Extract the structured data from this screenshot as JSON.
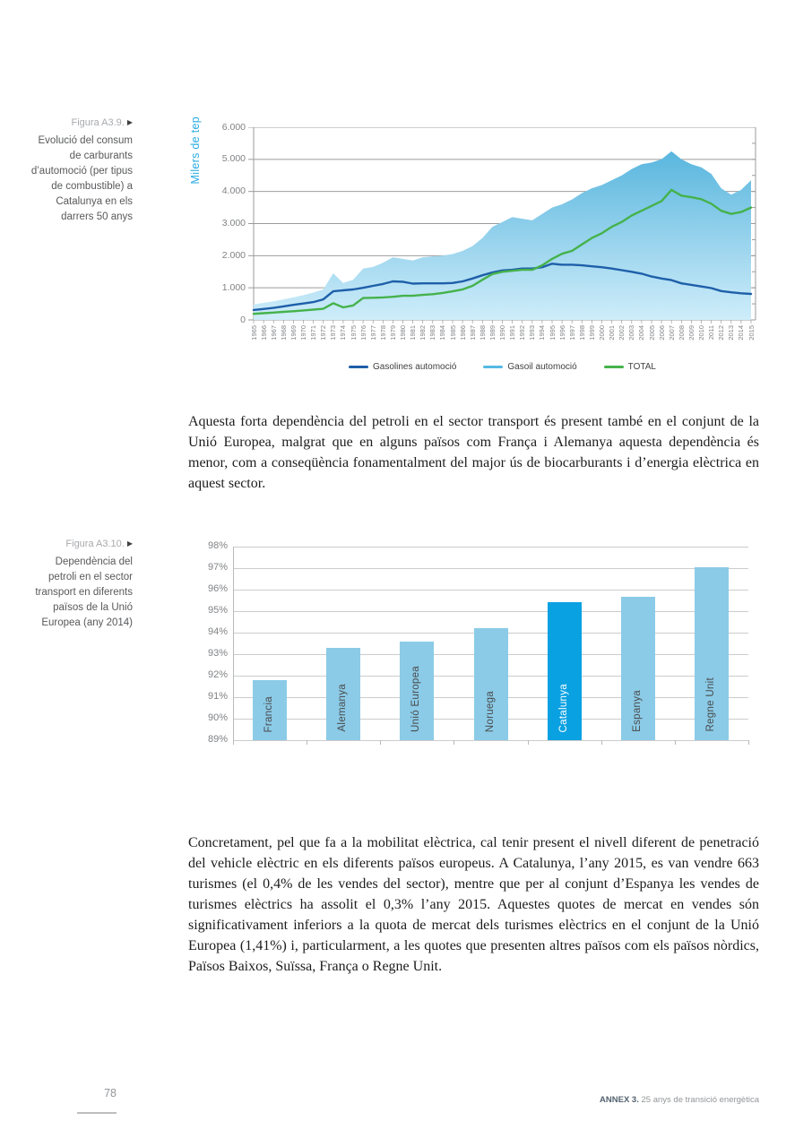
{
  "figure1": {
    "label": "Figura A3.9.",
    "arrow": "▶",
    "caption": "Evolució del consum de carburants d’automoció (per tipus de combustible) a Catalunya en els darrers 50 anys"
  },
  "figure2": {
    "label": "Figura A3.10.",
    "arrow": "▶",
    "caption": "Dependència del petroli en el sector transport en diferents països de la Unió Europea (any 2014)"
  },
  "paragraph1": "Aquesta forta dependència del petroli en el sector transport és present també en el conjunt de la Unió Europea, malgrat que en alguns països com França i Alemanya aquesta dependència és menor, com a conseqüència fonamentalment del major ús de biocarburants i d’energia elèctrica en aquest sector.",
  "paragraph2": "Concretament, pel que fa a la mobilitat elèctrica, cal tenir present el nivell diferent de penetració del vehicle elèctric en els diferents països europeus. A Catalunya, l’any 2015, es van vendre 663 turismes (el 0,4% de les vendes del sector), mentre que per al conjunt d’Espanya les vendes de turismes elèctrics ha assolit el 0,3% l’any 2015. Aquestes quotes de mercat en vendes són significativament inferiors a la quota de mercat dels turismes elèctrics en el conjunt de la Unió Europea (1,41%) i, particularment, a les quotes que presenten altres països com els països nòrdics, Països Baixos, Suïssa, França o Regne Unit.",
  "footer": {
    "page_number": "78",
    "annex_label": "ANNEX 3.",
    "annex_title": " 25 anys de transició energètica"
  },
  "chart_data": [
    {
      "type": "area",
      "title": "",
      "xlabel": "",
      "ylabel": "Milers de tep",
      "ylim": [
        0,
        6000
      ],
      "ytick_labels": [
        "0",
        "1.000",
        "2.000",
        "3.000",
        "4.000",
        "5.000",
        "6.000"
      ],
      "grid": true,
      "legend_position": "bottom",
      "area_gradient": [
        "#59b6de",
        "#cfedfa"
      ],
      "axis_color": "#9b9b9b",
      "x": [
        1965,
        1966,
        1967,
        1968,
        1969,
        1970,
        1971,
        1972,
        1973,
        1974,
        1975,
        1976,
        1977,
        1978,
        1979,
        1980,
        1981,
        1982,
        1983,
        1984,
        1985,
        1986,
        1987,
        1988,
        1989,
        1990,
        1991,
        1992,
        1993,
        1994,
        1995,
        1996,
        1997,
        1998,
        1999,
        2000,
        2001,
        2002,
        2003,
        2004,
        2005,
        2006,
        2007,
        2008,
        2009,
        2010,
        2011,
        2012,
        2013,
        2014,
        2015
      ],
      "series": [
        {
          "name": "Gasolines automoció",
          "style": "line",
          "color": "#1e5fa9",
          "values": [
            310,
            340,
            375,
            420,
            470,
            510,
            555,
            640,
            890,
            920,
            950,
            1000,
            1060,
            1120,
            1200,
            1190,
            1130,
            1140,
            1140,
            1140,
            1150,
            1200,
            1290,
            1390,
            1480,
            1540,
            1560,
            1600,
            1600,
            1640,
            1750,
            1720,
            1720,
            1700,
            1670,
            1640,
            1600,
            1550,
            1500,
            1440,
            1350,
            1290,
            1240,
            1140,
            1090,
            1040,
            990,
            900,
            860,
            830,
            810
          ]
        },
        {
          "name": "Gasoil automoció",
          "style": "area",
          "color": "#56b9e4",
          "values": [
            480,
            530,
            580,
            640,
            700,
            770,
            850,
            950,
            1450,
            1150,
            1250,
            1600,
            1650,
            1780,
            1950,
            1900,
            1850,
            1950,
            1980,
            2000,
            2050,
            2150,
            2300,
            2550,
            2900,
            3050,
            3200,
            3150,
            3100,
            3300,
            3500,
            3600,
            3750,
            3950,
            4100,
            4200,
            4350,
            4500,
            4700,
            4850,
            4900,
            5000,
            5250,
            5000,
            4850,
            4750,
            4550,
            4100,
            3900,
            4050,
            4350
          ]
        },
        {
          "name": "TOTAL",
          "style": "line",
          "color": "#45b24b",
          "values": [
            190,
            210,
            230,
            250,
            270,
            295,
            320,
            345,
            520,
            390,
            450,
            680,
            690,
            700,
            720,
            750,
            750,
            780,
            800,
            840,
            890,
            950,
            1060,
            1250,
            1430,
            1500,
            1530,
            1560,
            1560,
            1700,
            1900,
            2060,
            2150,
            2350,
            2550,
            2700,
            2900,
            3050,
            3250,
            3400,
            3550,
            3700,
            4050,
            3870,
            3820,
            3760,
            3620,
            3400,
            3300,
            3360,
            3500
          ]
        }
      ]
    },
    {
      "type": "bar",
      "title": "",
      "xlabel": "",
      "ylabel": "",
      "ylim": [
        89,
        98
      ],
      "ytick_labels": [
        "89%",
        "90%",
        "91%",
        "92%",
        "93%",
        "94%",
        "95%",
        "96%",
        "97%",
        "98%"
      ],
      "grid": true,
      "categories": [
        "Francia",
        "Alemanya",
        "Unió Europea",
        "Noruega",
        "Catalunya",
        "Espanya",
        "Regne Unit"
      ],
      "values": [
        91.8,
        93.3,
        93.6,
        94.2,
        95.4,
        95.65,
        97.05
      ],
      "bar_color": "#8bcbe7",
      "highlight_index": 4,
      "highlight_color": "#0aa1e2",
      "label_color": "#4a4a4c",
      "highlight_label_color": "#ffffff"
    }
  ]
}
